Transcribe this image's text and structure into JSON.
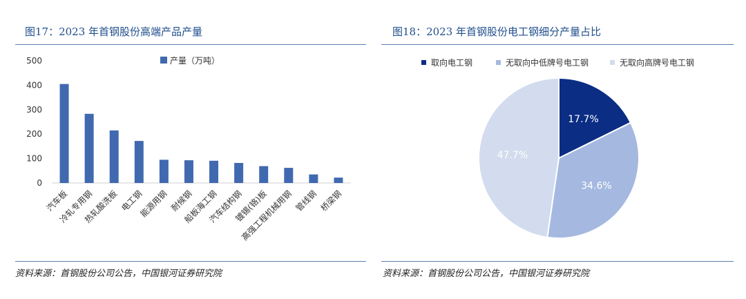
{
  "fig17": {
    "title": "图17：2023 年首钢股份高端产品产量",
    "source": "资料来源：首钢股份公司公告，中国银河证券研究院"
  },
  "fig18": {
    "title": "图18：2023 年首钢股份电工钢细分产量占比",
    "source": "资料来源：首钢股份公司公告，中国银河证券研究院"
  },
  "chart_data": [
    {
      "type": "bar",
      "title": "图17：2023 年首钢股份高端产品产量",
      "categories": [
        "汽车板",
        "冷轧专用钢",
        "热轧酸洗板",
        "电工钢",
        "能源用钢",
        "耐候钢",
        "船板海工钢",
        "汽车结构钢",
        "镀锡(铬)板",
        "高强工程机械用钢",
        "管线钢",
        "桥梁钢"
      ],
      "series": [
        {
          "name": "产量（万吨）",
          "values": [
            405,
            283,
            215,
            172,
            95,
            93,
            91,
            82,
            69,
            62,
            35,
            22
          ],
          "color": "#4169b0"
        }
      ],
      "ylim": [
        0,
        500
      ],
      "yticks": [
        0,
        100,
        200,
        300,
        400,
        500
      ],
      "legend_position": "top",
      "grid": false
    },
    {
      "type": "pie",
      "title": "图18：2023 年首钢股份电工钢细分产量占比",
      "slices": [
        {
          "label": "取向电工钢",
          "value": 17.7,
          "display": "17.7%",
          "color": "#0b2d84",
          "text_color": "#ffffff"
        },
        {
          "label": "无取向中低牌号电工钢",
          "value": 34.6,
          "display": "34.6%",
          "color": "#a4b8e0",
          "text_color": "#ffffff"
        },
        {
          "label": "无取向高牌号电工钢",
          "value": 47.7,
          "display": "47.7%",
          "color": "#d2dcee",
          "text_color": "#ffffff"
        }
      ],
      "legend_position": "top"
    }
  ]
}
